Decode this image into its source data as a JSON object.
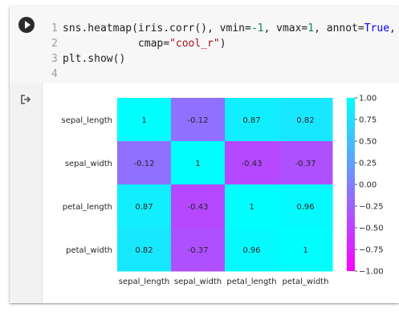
{
  "notebook": {
    "code_lines": [
      {
        "num": "1",
        "segments": [
          {
            "text": "sns.heatmap(iris.corr(), vmin=",
            "cls": ""
          },
          {
            "text": "-1",
            "cls": "tok-num"
          },
          {
            "text": ", vmax=",
            "cls": ""
          },
          {
            "text": "1",
            "cls": "tok-num"
          },
          {
            "text": ", annot=",
            "cls": ""
          },
          {
            "text": "True",
            "cls": "tok-kw"
          },
          {
            "text": ",",
            "cls": ""
          }
        ]
      },
      {
        "num": "2",
        "segments": [
          {
            "text": "            cmap=",
            "cls": ""
          },
          {
            "text": "\"cool_r\"",
            "cls": "tok-str"
          },
          {
            "text": ")",
            "cls": ""
          }
        ]
      },
      {
        "num": "3",
        "segments": [
          {
            "text": "plt.show()",
            "cls": ""
          }
        ]
      },
      {
        "num": "4",
        "segments": []
      }
    ],
    "run_icon": "play-icon",
    "output_icon": "output-arrow-icon"
  },
  "chart_data": {
    "type": "heatmap",
    "rows": [
      "sepal_length",
      "sepal_width",
      "petal_length",
      "petal_width"
    ],
    "cols": [
      "sepal_length",
      "sepal_width",
      "petal_length",
      "petal_width"
    ],
    "values": [
      [
        1,
        -0.12,
        0.87,
        0.82
      ],
      [
        -0.12,
        1,
        -0.43,
        -0.37
      ],
      [
        0.87,
        -0.43,
        1,
        0.96
      ],
      [
        0.82,
        -0.37,
        0.96,
        1
      ]
    ],
    "annotations": [
      [
        "1",
        "-0.12",
        "0.87",
        "0.82"
      ],
      [
        "-0.12",
        "1",
        "-0.43",
        "-0.37"
      ],
      [
        "0.87",
        "-0.43",
        "1",
        "0.96"
      ],
      [
        "0.82",
        "-0.37",
        "0.96",
        "1"
      ]
    ],
    "vmin": -1,
    "vmax": 1,
    "colormap": "cool_r",
    "colormap_low": "#ff00ff",
    "colormap_high": "#00ffff",
    "colorbar_ticks": [
      1.0,
      0.75,
      0.5,
      0.25,
      0.0,
      -0.25,
      -0.5,
      -0.75,
      -1.0
    ],
    "colorbar_tick_labels": [
      "1.00",
      "0.75",
      "0.50",
      "0.25",
      "0.00",
      "−0.25",
      "−0.50",
      "−0.75",
      "−1.00"
    ]
  }
}
